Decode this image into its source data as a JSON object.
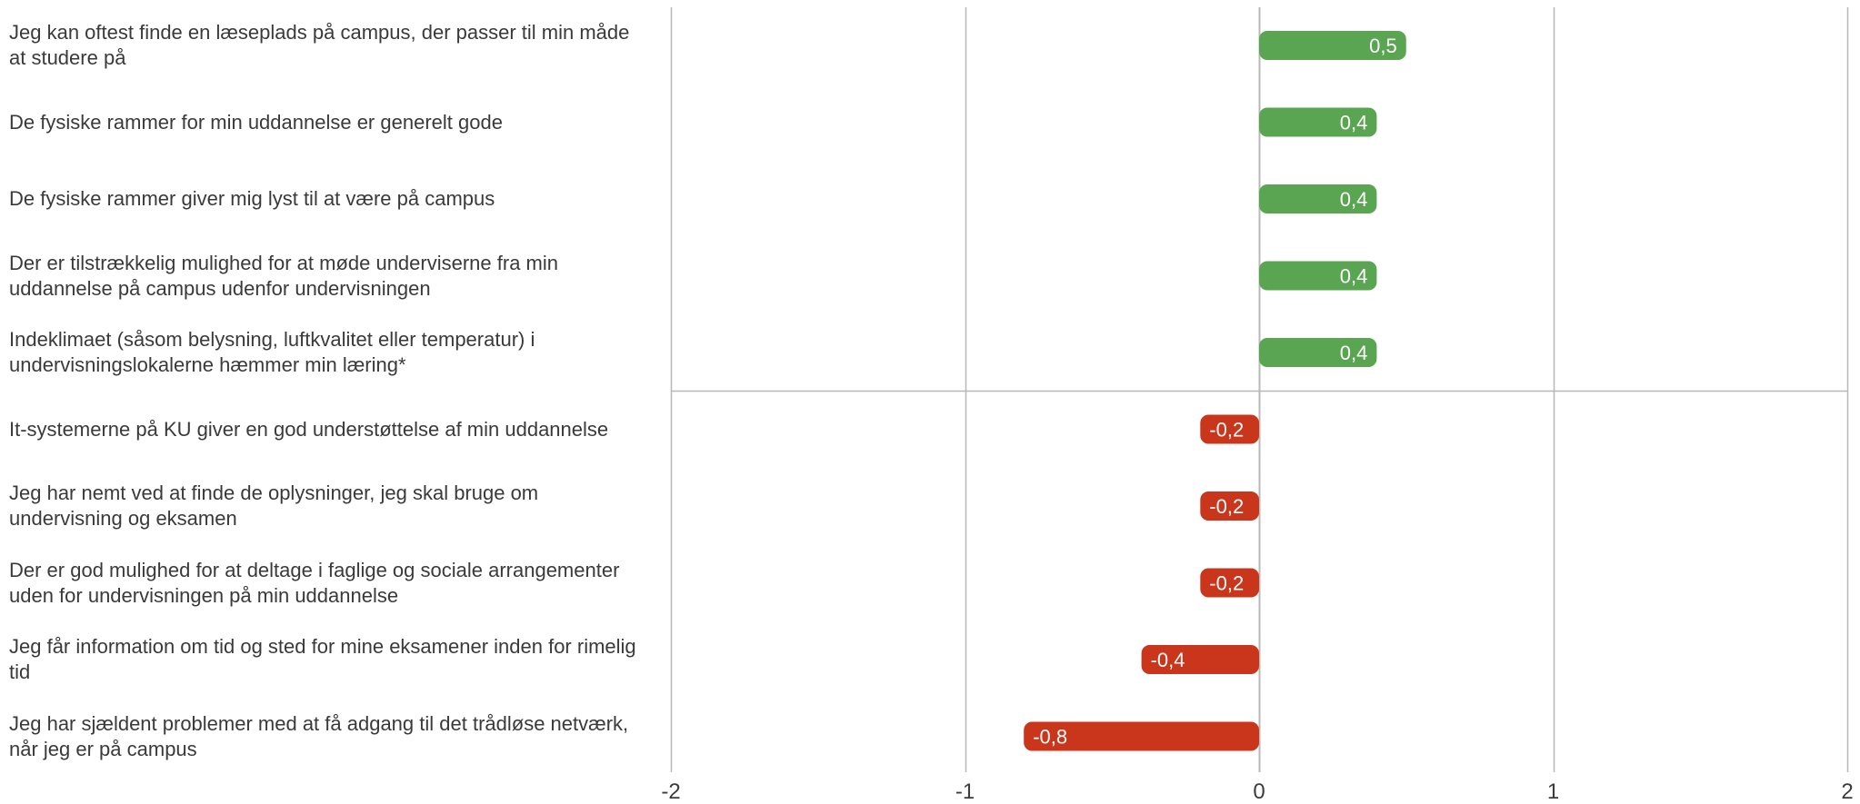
{
  "chart_data": {
    "type": "bar",
    "orientation": "horizontal",
    "categories": [
      "Jeg kan oftest finde en læseplads på campus, der passer til min måde at studere på",
      "De fysiske rammer for min uddannelse er generelt gode",
      "De fysiske rammer giver mig lyst til at være på campus",
      "Der er tilstrækkelig mulighed for at møde underviserne fra min uddannelse på campus udenfor undervisningen",
      "Indeklimaet (såsom belysning, luftkvalitet eller temperatur) i undervisningslokalerne hæmmer min læring*",
      "It-systemerne på KU giver en god understøttelse af min uddannelse",
      "Jeg har nemt ved at finde de oplysninger, jeg skal bruge om undervisning og eksamen",
      "Der er god mulighed for at deltage i faglige og sociale arrangementer uden for undervisningen på min uddannelse",
      "Jeg får information om tid og sted for mine eksamener inden for rimelig tid",
      "Jeg har sjældent problemer med at få adgang til det trådløse netværk, når jeg er på campus"
    ],
    "values": [
      0.5,
      0.4,
      0.4,
      0.4,
      0.4,
      -0.2,
      -0.2,
      -0.2,
      -0.4,
      -0.8
    ],
    "data_labels": [
      "0,5",
      "0,4",
      "0,4",
      "0,4",
      "0,4",
      "-0,2",
      "-0,2",
      "-0,2",
      "-0,4",
      "-0,8"
    ],
    "xlim": [
      -2,
      2
    ],
    "xticks": [
      -2,
      -1,
      0,
      1,
      2
    ],
    "xtick_labels": [
      "-2",
      "-1",
      "0",
      "1",
      "2"
    ],
    "title": "",
    "xlabel": "",
    "ylabel": "",
    "grid": true,
    "legend": "none",
    "colors": {
      "positive": "#5aa551",
      "negative": "#c9361b",
      "grid": "#b8b8b8",
      "label_text": "#ffffff",
      "tick_text": "#3c3c3c"
    }
  }
}
